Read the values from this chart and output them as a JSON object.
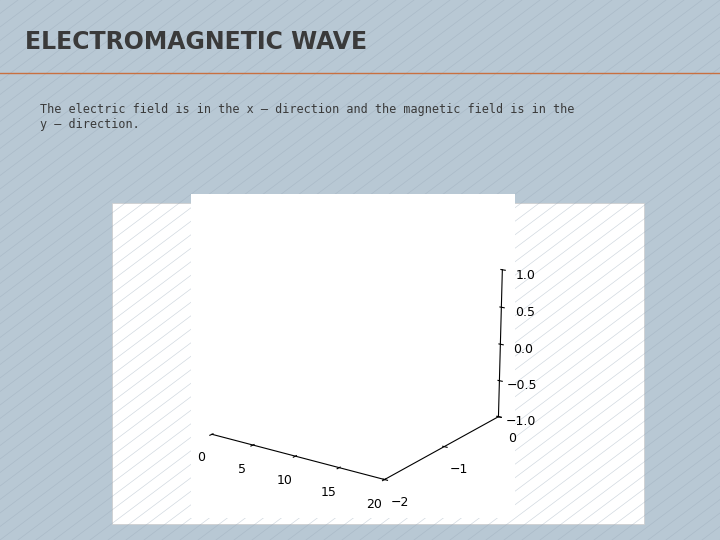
{
  "title": "ELECTROMAGNETIC WAVE",
  "subtitle": "The electric field is in the x – direction and the magnetic field is in the\ny – direction.",
  "bg_color": "#b8c8d4",
  "title_color": "#3a3a3a",
  "title_underline_color": "#c87040",
  "box_bg": "#ffffff",
  "xlim": [
    0,
    20
  ],
  "ylim": [
    -2,
    0
  ],
  "zlim": [
    -1,
    1
  ],
  "xticks": [
    0,
    5,
    10,
    15,
    20
  ],
  "yticks": [
    -2,
    -1,
    0
  ],
  "zticks": [
    -1,
    -0.5,
    0,
    0.5,
    1
  ],
  "elev": 18,
  "azim": -55
}
